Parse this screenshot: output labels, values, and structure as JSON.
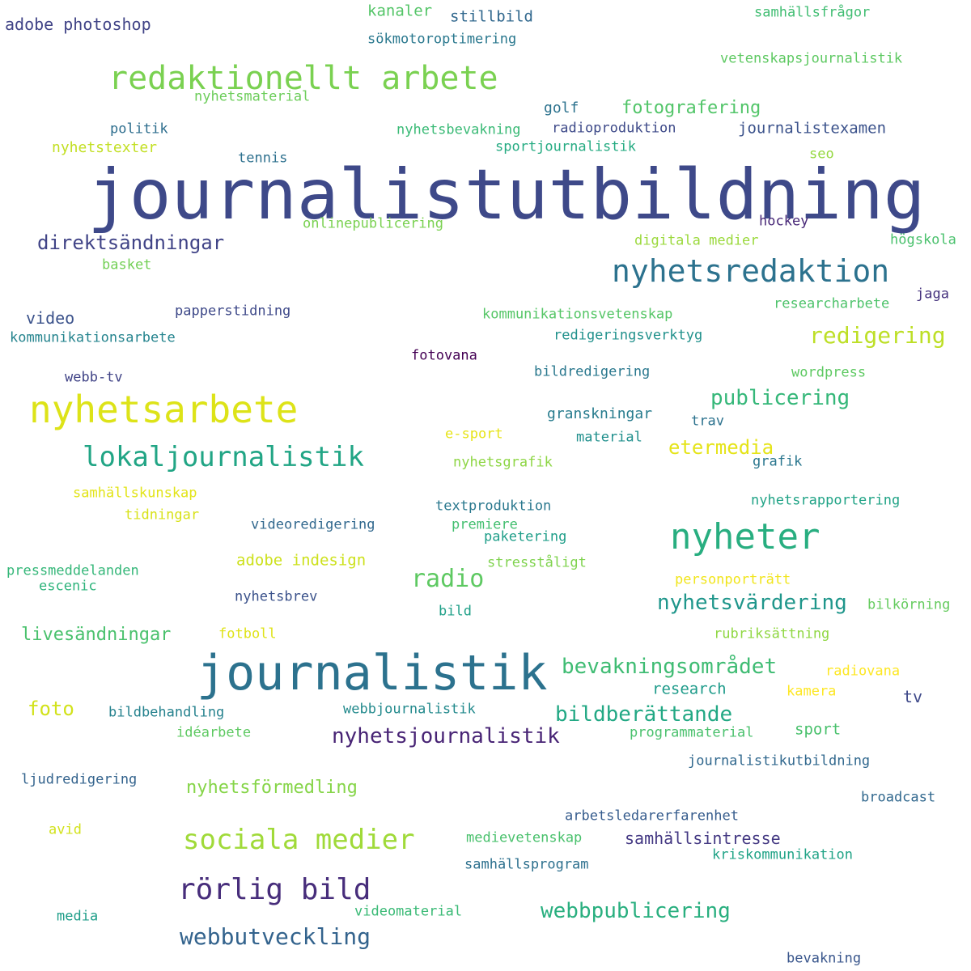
{
  "words": [
    {
      "text": "journalistutbildning",
      "color": "#3e4989"
    },
    {
      "text": "journalistik",
      "color": "#2c728e"
    },
    {
      "text": "nyhetsarbete",
      "color": "#dde318"
    },
    {
      "text": "redaktionellt arbete",
      "color": "#7ad151"
    },
    {
      "text": "nyheter",
      "color": "#28ae80"
    },
    {
      "text": "nyhetsredaktion",
      "color": "#2c728e"
    },
    {
      "text": "lokaljournalistik",
      "color": "#21a585"
    },
    {
      "text": "sociala medier",
      "color": "#a0da39"
    },
    {
      "text": "rörlig bild",
      "color": "#472d7b"
    },
    {
      "text": "redigering",
      "color": "#bddf26"
    },
    {
      "text": "radio",
      "color": "#5ec962"
    },
    {
      "text": "webbutveckling",
      "color": "#33638d"
    },
    {
      "text": "webbpublicering",
      "color": "#29af7f"
    },
    {
      "text": "nyhetsjournalistik",
      "color": "#482475"
    },
    {
      "text": "publicering",
      "color": "#35b779"
    },
    {
      "text": "bevakningsområdet",
      "color": "#3fbc73"
    },
    {
      "text": "bildberättande",
      "color": "#22a884"
    },
    {
      "text": "nyhetsvärdering",
      "color": "#1f968b"
    },
    {
      "text": "direktsändningar",
      "color": "#414487"
    },
    {
      "text": "etermedia",
      "color": "#e5e419"
    },
    {
      "text": "livesändningar",
      "color": "#4ac16d"
    },
    {
      "text": "nyhetsförmedling",
      "color": "#86d549"
    },
    {
      "text": "samhällsintresse",
      "color": "#443983"
    },
    {
      "text": "fotografering",
      "color": "#52c569"
    },
    {
      "text": "foto",
      "color": "#d2e21b"
    },
    {
      "text": "adobe photoshop",
      "color": "#414487"
    },
    {
      "text": "journalistexamen",
      "color": "#3b528b"
    },
    {
      "text": "stillbild",
      "color": "#31688e"
    },
    {
      "text": "kanaler",
      "color": "#54c568"
    },
    {
      "text": "sökmotoroptimering",
      "color": "#2a788e"
    },
    {
      "text": "samhällsfrågor",
      "color": "#40bd72"
    },
    {
      "text": "vetenskapsjournalistik",
      "color": "#5ec962"
    },
    {
      "text": "nyhetsmaterial",
      "color": "#6ccd5a"
    },
    {
      "text": "golf",
      "color": "#2c728e"
    },
    {
      "text": "politik",
      "color": "#2e6e8e"
    },
    {
      "text": "nyhetsbevakning",
      "color": "#3aba76"
    },
    {
      "text": "radioproduktion",
      "color": "#3e4a89"
    },
    {
      "text": "nyhetstexter",
      "color": "#c2df23"
    },
    {
      "text": "sportjournalistik",
      "color": "#25ab82"
    },
    {
      "text": "tennis",
      "color": "#2d708e"
    },
    {
      "text": "seo",
      "color": "#95d840"
    },
    {
      "text": "onlinepublicering",
      "color": "#7ad151"
    },
    {
      "text": "hockey",
      "color": "#482878"
    },
    {
      "text": "digitala medier",
      "color": "#9bd93c"
    },
    {
      "text": "högskola",
      "color": "#4ac16d"
    },
    {
      "text": "basket",
      "color": "#73d056"
    },
    {
      "text": "jaga",
      "color": "#46337e"
    },
    {
      "text": "researcharbete",
      "color": "#4ec36b"
    },
    {
      "text": "video",
      "color": "#3b528b"
    },
    {
      "text": "papperstidning",
      "color": "#3e4989"
    },
    {
      "text": "kommunikationsvetenskap",
      "color": "#56c667"
    },
    {
      "text": "kommunikationsarbete",
      "color": "#25848e"
    },
    {
      "text": "redigeringsverktyg",
      "color": "#21918c"
    },
    {
      "text": "fotovana",
      "color": "#440154"
    },
    {
      "text": "webb-tv",
      "color": "#414487"
    },
    {
      "text": "bildredigering",
      "color": "#2a788e"
    },
    {
      "text": "wordpress",
      "color": "#5ec962"
    },
    {
      "text": "granskningar",
      "color": "#287c8e"
    },
    {
      "text": "trav",
      "color": "#2c728e"
    },
    {
      "text": "e-sport",
      "color": "#e7e419"
    },
    {
      "text": "material",
      "color": "#21908d"
    },
    {
      "text": "nyhetsgrafik",
      "color": "#8ed645"
    },
    {
      "text": "grafik",
      "color": "#2a768e"
    },
    {
      "text": "samhällskunskap",
      "color": "#e2e418"
    },
    {
      "text": "tidningar",
      "color": "#d8e219"
    },
    {
      "text": "textproduktion",
      "color": "#2a788e"
    },
    {
      "text": "nyhetsrapportering",
      "color": "#20a386"
    },
    {
      "text": "videoredigering",
      "color": "#31688e"
    },
    {
      "text": "premiere",
      "color": "#44bf70"
    },
    {
      "text": "paketering",
      "color": "#1f9e89"
    },
    {
      "text": "adobe indesign",
      "color": "#cde11d"
    },
    {
      "text": "stresståligt",
      "color": "#7fd34e"
    },
    {
      "text": "pressmeddelanden",
      "color": "#35b779"
    },
    {
      "text": "personporträtt",
      "color": "#f1e51d"
    },
    {
      "text": "escenic",
      "color": "#2fb47c"
    },
    {
      "text": "nyhetsbrev",
      "color": "#3b528b"
    },
    {
      "text": "bilkörning",
      "color": "#65cb5e"
    },
    {
      "text": "bild",
      "color": "#1fa088"
    },
    {
      "text": "fotboll",
      "color": "#dfe318"
    },
    {
      "text": "rubriksättning",
      "color": "#90d743"
    },
    {
      "text": "radiovana",
      "color": "#fde725"
    },
    {
      "text": "research",
      "color": "#1e9b8a"
    },
    {
      "text": "kamera",
      "color": "#fde725"
    },
    {
      "text": "tv",
      "color": "#3e4989"
    },
    {
      "text": "bildbehandling",
      "color": "#26828e"
    },
    {
      "text": "webbjournalistik",
      "color": "#238a8d"
    },
    {
      "text": "idéarbete",
      "color": "#5ec962"
    },
    {
      "text": "programmaterial",
      "color": "#4ac16d"
    },
    {
      "text": "sport",
      "color": "#4ac16d"
    },
    {
      "text": "journalistikutbildning",
      "color": "#31688e"
    },
    {
      "text": "ljudredigering",
      "color": "#33638d"
    },
    {
      "text": "broadcast",
      "color": "#31688e"
    },
    {
      "text": "arbetsledarerfarenhet",
      "color": "#365c8d"
    },
    {
      "text": "avid",
      "color": "#d2e21b"
    },
    {
      "text": "medievetenskap",
      "color": "#4ac16d"
    },
    {
      "text": "kriskommunikation",
      "color": "#20a386"
    },
    {
      "text": "samhällsprogram",
      "color": "#2d708e"
    },
    {
      "text": "media",
      "color": "#1f9e89"
    },
    {
      "text": "videomaterial",
      "color": "#3aba76"
    },
    {
      "text": "bevakning",
      "color": "#39568c"
    }
  ]
}
